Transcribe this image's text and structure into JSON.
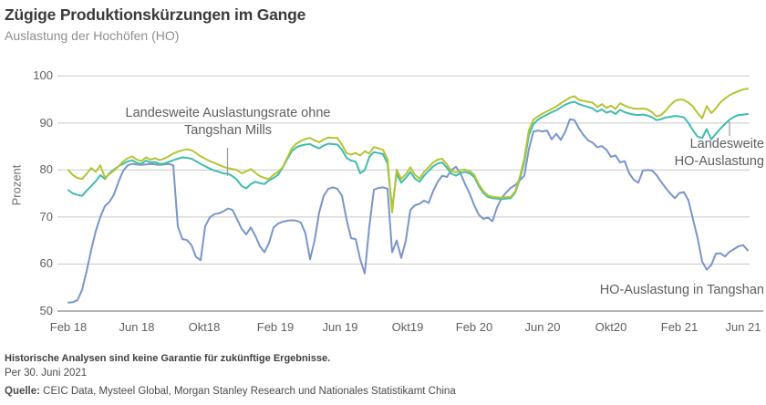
{
  "header": {
    "title": "Zügige Produktionskürzungen im Gange",
    "subtitle": "Auslastung der Hochöfen (HO)"
  },
  "footer": {
    "disclaimer": "Historische Analysen sind keine Garantie für zukünftige Ergebnisse.",
    "as_of": "Per 30. Juni 2021",
    "source_label": "Quelle:",
    "source_text": " CEIC Data, Mysteel Global, Morgan Stanley Research und Nationales Statistikamt China"
  },
  "chart_data": {
    "type": "line",
    "title": "Zügige Produktionskürzungen im Gange",
    "subtitle": "Auslastung der Hochöfen (HO)",
    "ylabel": "Prozent",
    "xlabel": "",
    "ylim": [
      50,
      100
    ],
    "yticks": [
      100,
      90,
      80,
      70,
      60,
      50
    ],
    "grid": true,
    "legend": "inline annotations with leader lines",
    "x_tick_labels": [
      "Feb 18",
      "Jun 18",
      "Okt18",
      "Feb 19",
      "Jun 19",
      "Okt19",
      "Feb 20",
      "Jun 20",
      "Okt20",
      "Feb 21",
      "Jun 21"
    ],
    "x_tick_indices": [
      0,
      15,
      29.8,
      45.4,
      59.6,
      74.4,
      89,
      104,
      119,
      134,
      148
    ],
    "x_note": "wöchentliche Beobachtungen (150 Punkte), Feb 2018 bis Jun 2021",
    "annotations": [
      {
        "series": "ohne_tangshan",
        "text_lines": [
          "Landesweite Auslastungsrate ohne",
          "Tangshan Mills"
        ]
      },
      {
        "series": "landesweit",
        "text_lines": [
          "Landesweite",
          "HO-Auslastung"
        ]
      },
      {
        "series": "tangshan",
        "text_lines": [
          "HO-Auslastung in Tangshan"
        ]
      }
    ],
    "series": [
      {
        "id": "tangshan",
        "name": "HO-Auslastung in Tangshan",
        "color": "#7b95c9",
        "values": [
          51.8,
          51.9,
          52.3,
          54.5,
          58.5,
          63.0,
          67.0,
          70.0,
          72.3,
          73.2,
          74.8,
          77.5,
          79.8,
          81.0,
          81.3,
          81.2,
          81.1,
          81.2,
          81.3,
          81.2,
          81.1,
          81.2,
          81.3,
          81.0,
          68.0,
          65.3,
          65.1,
          64.0,
          61.5,
          60.8,
          68.0,
          69.9,
          70.6,
          70.8,
          71.2,
          71.8,
          71.5,
          69.5,
          67.5,
          66.3,
          67.8,
          66.0,
          63.8,
          62.5,
          64.5,
          67.8,
          68.6,
          69.0,
          69.2,
          69.3,
          69.2,
          68.8,
          66.5,
          61.0,
          65.0,
          71.0,
          74.5,
          76.0,
          76.3,
          76.0,
          74.5,
          69.5,
          65.5,
          65.3,
          61.0,
          58.0,
          68.0,
          75.8,
          76.2,
          76.3,
          76.0,
          62.5,
          65.0,
          61.3,
          65.0,
          71.5,
          72.5,
          72.8,
          73.5,
          73.0,
          75.5,
          77.5,
          78.8,
          78.5,
          80.0,
          80.7,
          79.3,
          77.0,
          75.0,
          72.5,
          70.5,
          69.6,
          69.9,
          69.1,
          72.0,
          74.0,
          75.2,
          76.2,
          76.8,
          77.8,
          78.8,
          84.5,
          88.2,
          88.4,
          88.2,
          88.4,
          86.5,
          87.7,
          86.4,
          88.2,
          90.8,
          90.6,
          88.8,
          87.4,
          86.3,
          85.8,
          84.8,
          85.1,
          84.3,
          82.8,
          83.1,
          81.6,
          81.9,
          79.3,
          77.9,
          77.3,
          79.9,
          80.0,
          79.9,
          78.9,
          77.5,
          76.2,
          75.0,
          74.0,
          75.1,
          75.3,
          73.5,
          69.5,
          65.5,
          60.5,
          58.8,
          59.8,
          62.2,
          62.3,
          61.6,
          62.6,
          63.2,
          63.8,
          64.0,
          62.9
        ]
      },
      {
        "id": "landesweit",
        "name": "Landesweite HO-Auslastung",
        "color": "#3fbcad",
        "values": [
          75.7,
          75.0,
          74.7,
          74.5,
          75.6,
          76.6,
          77.6,
          78.9,
          78.1,
          79.3,
          80.1,
          80.8,
          81.3,
          81.8,
          82.1,
          81.5,
          81.3,
          82.0,
          81.6,
          81.7,
          81.3,
          81.4,
          81.7,
          82.1,
          82.4,
          82.7,
          82.6,
          82.4,
          81.9,
          81.3,
          80.8,
          80.3,
          79.9,
          79.6,
          79.3,
          79.2,
          78.7,
          77.9,
          76.6,
          76.1,
          77.0,
          77.5,
          77.2,
          77.0,
          77.8,
          78.3,
          79.0,
          80.5,
          82.3,
          84.0,
          84.8,
          85.2,
          85.4,
          85.5,
          85.0,
          84.6,
          85.2,
          85.6,
          85.5,
          85.4,
          84.3,
          82.6,
          82.0,
          81.8,
          79.3,
          80.0,
          82.8,
          83.8,
          83.6,
          83.4,
          81.3,
          71.8,
          79.2,
          77.3,
          78.3,
          79.6,
          78.2,
          77.5,
          78.8,
          79.8,
          80.8,
          81.4,
          81.6,
          80.5,
          79.2,
          78.8,
          79.4,
          79.6,
          79.3,
          78.5,
          76.6,
          75.1,
          74.3,
          74.0,
          73.9,
          73.8,
          73.9,
          74.0,
          75.2,
          78.0,
          81.8,
          87.4,
          89.8,
          90.7,
          91.3,
          91.8,
          92.3,
          92.7,
          93.3,
          93.9,
          94.3,
          94.5,
          94.0,
          93.7,
          93.4,
          93.1,
          92.4,
          92.9,
          92.2,
          92.5,
          91.9,
          92.8,
          92.3,
          92.0,
          91.8,
          91.7,
          91.8,
          91.6,
          91.2,
          90.6,
          90.8,
          91.2,
          91.3,
          91.5,
          91.4,
          91.2,
          90.0,
          88.4,
          87.1,
          86.8,
          88.7,
          86.5,
          87.7,
          88.8,
          89.8,
          90.7,
          91.3,
          91.7,
          91.8,
          91.9
        ]
      },
      {
        "id": "ohne_tangshan",
        "name": "Landesweite Auslastungsrate ohne Tangshan Mills",
        "color": "#b5c433",
        "values": [
          80.0,
          78.9,
          78.3,
          78.1,
          79.2,
          80.4,
          79.6,
          81.0,
          78.4,
          79.1,
          79.9,
          80.8,
          81.8,
          82.5,
          82.9,
          82.2,
          81.9,
          82.7,
          82.2,
          82.5,
          82.1,
          82.4,
          82.9,
          83.5,
          83.9,
          84.2,
          84.4,
          84.2,
          83.6,
          82.9,
          82.4,
          81.9,
          81.5,
          81.1,
          80.7,
          80.4,
          80.2,
          80.0,
          79.3,
          79.7,
          80.2,
          79.4,
          78.7,
          78.3,
          78.1,
          79.0,
          79.6,
          80.6,
          82.6,
          84.6,
          85.6,
          86.2,
          86.6,
          86.8,
          86.3,
          85.9,
          86.5,
          86.9,
          86.8,
          86.8,
          85.4,
          83.6,
          83.3,
          83.6,
          83.1,
          84.0,
          83.5,
          84.9,
          84.6,
          84.3,
          82.3,
          71.0,
          80.1,
          78.1,
          79.1,
          80.6,
          79.0,
          78.2,
          79.6,
          80.6,
          81.6,
          82.2,
          82.4,
          81.2,
          79.8,
          79.5,
          80.0,
          80.1,
          79.8,
          79.0,
          77.0,
          75.5,
          74.6,
          74.3,
          74.2,
          74.1,
          74.2,
          74.3,
          75.5,
          78.5,
          82.5,
          88.5,
          90.7,
          91.4,
          92.0,
          92.5,
          93.0,
          93.5,
          94.2,
          94.8,
          95.4,
          95.7,
          94.9,
          94.7,
          94.5,
          94.3,
          93.4,
          94.0,
          93.2,
          93.7,
          93.0,
          94.2,
          93.7,
          93.3,
          93.1,
          93.0,
          93.1,
          92.9,
          92.3,
          91.4,
          91.7,
          92.6,
          93.8,
          94.7,
          95.0,
          94.9,
          94.3,
          93.5,
          92.1,
          91.0,
          93.6,
          92.1,
          93.1,
          94.4,
          95.2,
          95.9,
          96.4,
          96.8,
          97.1,
          97.3
        ]
      }
    ],
    "colors": {
      "grid": "#c9c9c9",
      "axis": "#9b9b9b",
      "leader": "#9b9b9b",
      "tick_text": "#5f5f5f",
      "annotation_text": "#5e5e5e"
    }
  }
}
